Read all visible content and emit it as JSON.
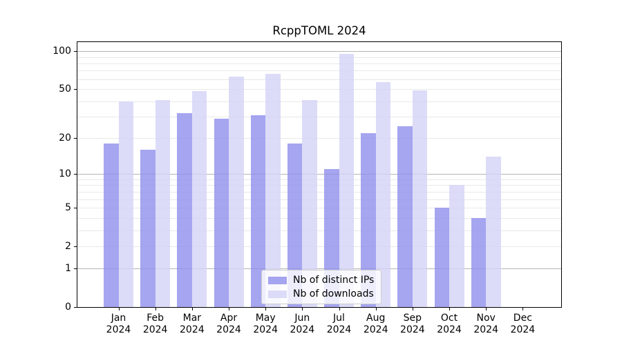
{
  "title": "RcppTOML 2024",
  "chart_data": {
    "type": "bar",
    "title": "RcppTOML 2024",
    "categories": [
      "Jan 2024",
      "Feb 2024",
      "Mar 2024",
      "Apr 2024",
      "May 2024",
      "Jun 2024",
      "Jul 2024",
      "Aug 2024",
      "Sep 2024",
      "Oct 2024",
      "Nov 2024",
      "Dec 2024"
    ],
    "series": [
      {
        "name": "Nb of distinct IPs",
        "color": "#a5a5f0",
        "values": [
          18,
          16,
          32,
          29,
          31,
          18,
          11,
          22,
          25,
          5,
          4,
          0
        ]
      },
      {
        "name": "Nb of downloads",
        "color": "#dcdcf8",
        "values": [
          40,
          41,
          48,
          63,
          66,
          41,
          95,
          57,
          49,
          8,
          14,
          0
        ]
      }
    ],
    "yscale": "log1p",
    "ylim": [
      0,
      118
    ],
    "y_ticks": [
      0,
      1,
      2,
      5,
      10,
      20,
      50,
      100
    ],
    "major_gridlines": [
      1,
      10,
      100
    ],
    "minor_gridlines": [
      2,
      3,
      4,
      5,
      6,
      7,
      8,
      9,
      20,
      30,
      40,
      50,
      60,
      70,
      80,
      90
    ],
    "grid": true,
    "bar_alpha": 0.8,
    "legend_position": "lower center",
    "background": "#ffffff"
  }
}
